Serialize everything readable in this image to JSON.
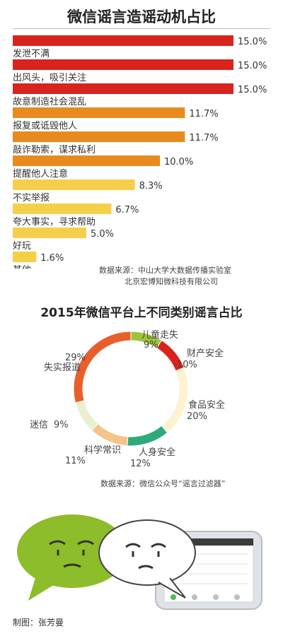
{
  "colors": {
    "red": "#d9231d",
    "orange": "#e88a1e",
    "yellow": "#f6cf4a",
    "green_chat": "#8dbd2a"
  },
  "chart_data": [
    {
      "type": "bar",
      "title": "微信谣言造谣动机占比",
      "categories": [
        "发泄不满",
        "出风头，吸引关注",
        "故意制造社会混乱",
        "报复或诋毁他人",
        "敲诈勒索，谋求私利",
        "提醒他人注意",
        "不实举报",
        "夸大事实，寻求帮助",
        "好玩",
        "其他"
      ],
      "values": [
        15.0,
        15.0,
        15.0,
        11.7,
        11.7,
        10.0,
        8.3,
        6.7,
        5.0,
        1.6
      ],
      "value_labels": [
        "15.0%",
        "15.0%",
        "15.0%",
        "11.7%",
        "11.7%",
        "10.0%",
        "8.3%",
        "6.7%",
        "5.0%",
        "1.6%"
      ],
      "bar_colors": [
        "#d9231d",
        "#d9231d",
        "#d9231d",
        "#e88a1e",
        "#e88a1e",
        "#e88a1e",
        "#f6cf4a",
        "#f6cf4a",
        "#f6cf4a",
        "#f6cf4a"
      ],
      "xlim": [
        0,
        15.0
      ]
    },
    {
      "type": "pie",
      "title": "2015年微信平台上不同类别谣言占比",
      "categories": [
        "儿童走失",
        "财产安全",
        "食品安全",
        "人身安全",
        "科学常识",
        "迷信",
        "失实报道"
      ],
      "values": [
        9,
        10,
        20,
        12,
        11,
        9,
        29
      ],
      "value_labels": [
        "9%",
        "10%",
        "20%",
        "12%",
        "11%",
        "9%",
        "29%"
      ],
      "slice_colors": [
        "#9ec43a",
        "#d9231d",
        "#fdf3d0",
        "#2eaa7a",
        "#f4c48a",
        "#e8f0cf",
        "#e85f2b"
      ]
    }
  ],
  "source1": {
    "prefix": "数据来源：",
    "line1": "中山大学大数据传播实验室",
    "line2": "北京宏博知微科技有限公司"
  },
  "source2": "数据来源：微信公众号“谣言过滤器”",
  "credit": "制图：张芳曼"
}
